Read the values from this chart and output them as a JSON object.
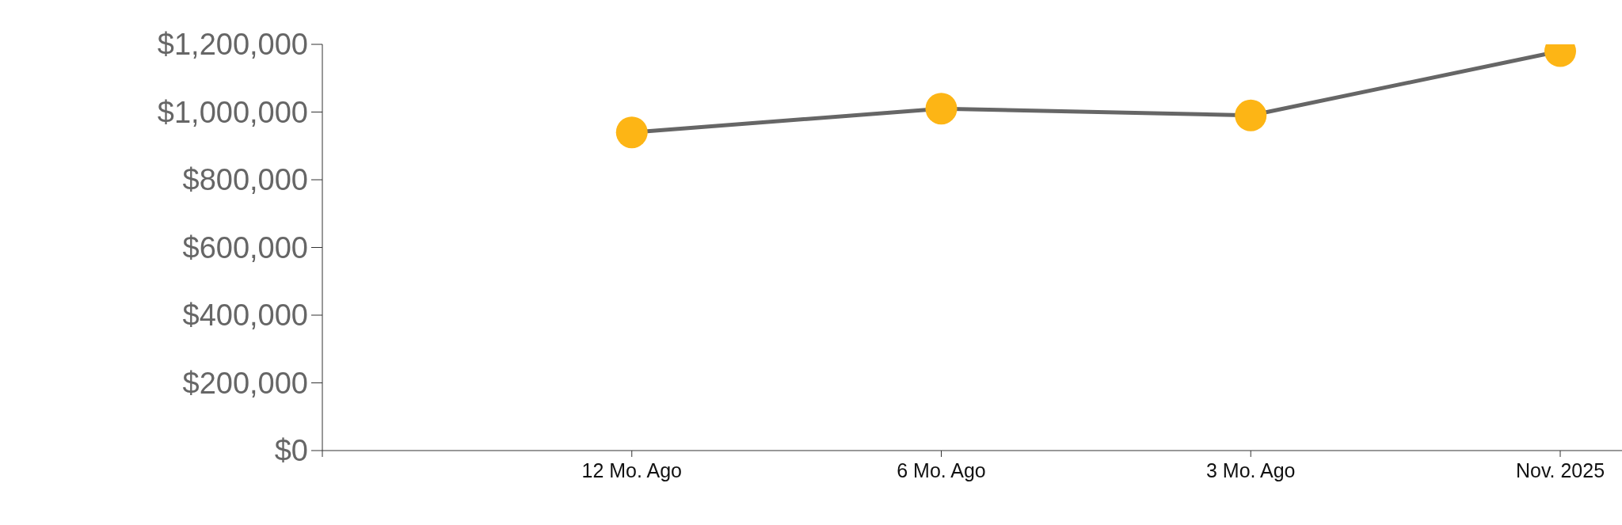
{
  "chart_data": {
    "type": "line",
    "categories": [
      null,
      "12 Mo. Ago",
      "6 Mo. Ago",
      "3 Mo. Ago",
      "Nov. 2025"
    ],
    "series": [
      {
        "color": "#666666",
        "colors": [
          null,
          "#fdb515",
          "#fdb515",
          "#fdb515",
          "#fdb515"
        ],
        "values": [
          null,
          940000,
          1010000,
          990000,
          1180000
        ]
      }
    ],
    "ylim": [
      0,
      1200000
    ],
    "yticks": [
      {
        "value": 0,
        "label": "$0"
      },
      {
        "value": 200000,
        "label": "$200,000"
      },
      {
        "value": 400000,
        "label": "$400,000"
      },
      {
        "value": 600000,
        "label": "$600,000"
      },
      {
        "value": 800000,
        "label": "$800,000"
      },
      {
        "value": 1000000,
        "label": "$1,000,000"
      },
      {
        "value": 1200000,
        "label": "$1,200,000"
      }
    ],
    "grid": false,
    "legend": false,
    "marker": "circle",
    "line_style": "solid"
  }
}
